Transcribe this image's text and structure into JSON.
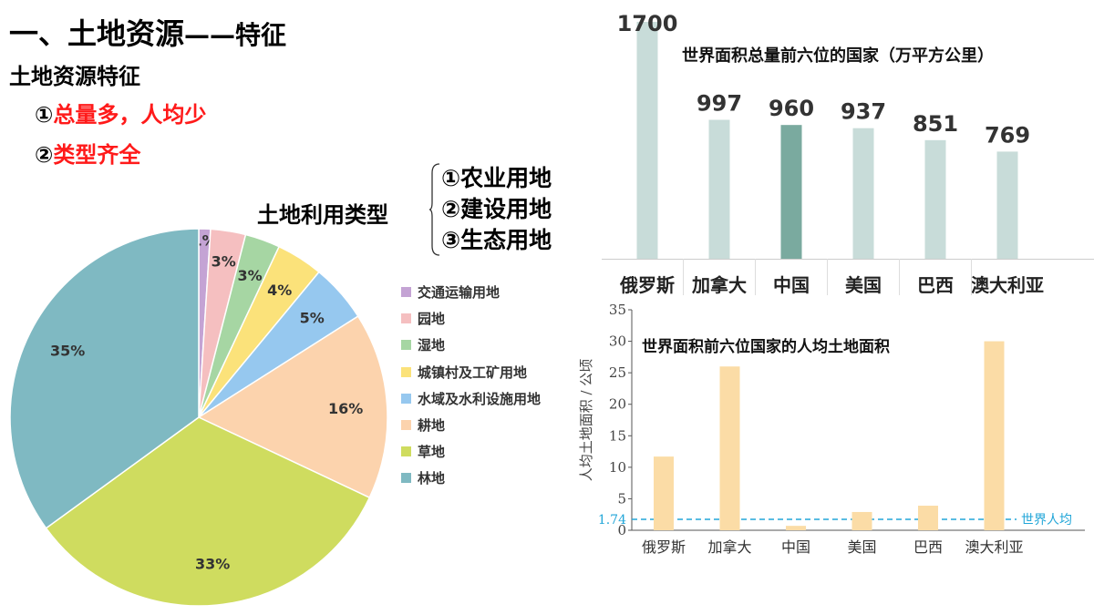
{
  "header": {
    "title": "一、土地资源",
    "title_suffix": "——特征",
    "subtitle": "土地资源特征",
    "features": [
      {
        "num": "①",
        "text": "总量多，人均少"
      },
      {
        "num": "②",
        "text": "类型齐全"
      }
    ],
    "usage_label": "土地利用类型",
    "usage_types": [
      "①农业用地",
      "②建设用地",
      "③生态用地"
    ]
  },
  "colors": {
    "accent_red": "#ff1a1a",
    "bar_light": "#c8dcd9",
    "bar_highlight": "#7aaa9f",
    "bar_peach": "#fbdca6",
    "ref_line": "#22a6d8"
  },
  "chart_data": [
    {
      "type": "pie",
      "title": "",
      "categories": [
        "交通运输用地",
        "园地",
        "湿地",
        "城镇村及工矿用地",
        "水域及水利设施用地",
        "耕地",
        "草地",
        "林地"
      ],
      "values": [
        1,
        3,
        3,
        4,
        5,
        16,
        33,
        35
      ],
      "labels": [
        "1%",
        "3%",
        "3%",
        "4%",
        "5%",
        "16%",
        "33%",
        "35%"
      ],
      "colors": [
        "#c4a3d4",
        "#f5bfc0",
        "#a6d6a3",
        "#fbe27a",
        "#96c8ef",
        "#fcd3ad",
        "#cfdc5f",
        "#7fb9c2"
      ],
      "legend_position": "right"
    },
    {
      "type": "bar",
      "title": "世界面积总量前六位的国家（万平方公里）",
      "categories": [
        "俄罗斯",
        "加拿大",
        "中国",
        "美国",
        "巴西",
        "澳大利亚"
      ],
      "values": [
        1700,
        997,
        960,
        937,
        851,
        769
      ],
      "value_labels": [
        "1700",
        "997",
        "960",
        "937",
        "851",
        "769"
      ],
      "highlight": "中国",
      "ylim": [
        0,
        1700
      ],
      "grid": false
    },
    {
      "type": "bar",
      "title": "世界面积前六位国家的人均土地面积",
      "categories": [
        "俄罗斯",
        "加拿大",
        "中国",
        "美国",
        "巴西",
        "澳大利亚"
      ],
      "values": [
        11.7,
        26,
        0.7,
        2.9,
        3.9,
        30
      ],
      "ylabel": "人均土地面积 / 公顷",
      "ylim": [
        0,
        35
      ],
      "yticks": [
        "0",
        "5",
        "10",
        "15",
        "20",
        "25",
        "30",
        "35"
      ],
      "reference": {
        "value": 1.74,
        "tick_label": "1.74",
        "label": "世界人均"
      },
      "grid": false
    }
  ]
}
